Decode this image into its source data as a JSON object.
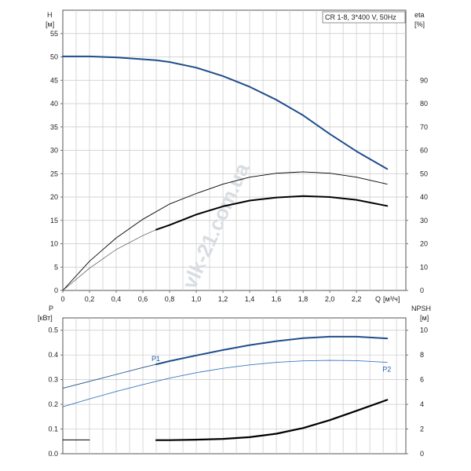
{
  "chart_data": [
    {
      "type": "line",
      "model_label": "CR 1-8, 3*400 V, 50Hz",
      "watermark": "vlk-21.com.ua",
      "xlim": [
        0,
        2.57
      ],
      "ylim": [
        0,
        60
      ],
      "y2lim": [
        0,
        120
      ],
      "left_axis": {
        "label": "H",
        "unit": "[м]",
        "ticks": [
          0,
          5,
          10,
          15,
          20,
          25,
          30,
          35,
          40,
          45,
          50,
          55
        ]
      },
      "right_axis": {
        "label": "eta",
        "unit": "[%]",
        "ticks": [
          0,
          10,
          20,
          30,
          40,
          50,
          60,
          70,
          80,
          90
        ]
      },
      "x_axis": {
        "label": "Q",
        "unit": "[м³/ч]",
        "ticks": [
          0,
          0.2,
          0.4,
          0.6,
          0.8,
          1.0,
          1.2,
          1.4,
          1.6,
          1.8,
          2.0,
          2.2
        ],
        "tick_labels": [
          "0",
          "0,2",
          "0,4",
          "0,6",
          "0,8",
          "1,0",
          "1,2",
          "1,4",
          "1,6",
          "1,8",
          "2,0",
          "2,2"
        ]
      },
      "series": [
        {
          "axis": "left",
          "color": "#1f4e8c",
          "width": 2.0,
          "x": [
            0,
            0.2,
            0.4,
            0.6,
            0.7,
            0.8,
            1.0,
            1.2,
            1.4,
            1.6,
            1.8,
            2.0,
            2.2,
            2.43
          ],
          "y": [
            50.1,
            50.1,
            49.9,
            49.5,
            49.3,
            48.9,
            47.7,
            45.9,
            43.6,
            40.8,
            37.5,
            33.5,
            29.8,
            26.0
          ]
        },
        {
          "axis": "right",
          "color": "#000000",
          "width": 0.9,
          "x": [
            0,
            0.2,
            0.4,
            0.6,
            0.8,
            1.0,
            1.2,
            1.4,
            1.6,
            1.8,
            2.0,
            2.2,
            2.43
          ],
          "y": [
            0,
            12.5,
            22.5,
            30.5,
            37.0,
            41.5,
            45.5,
            48.5,
            50.2,
            50.8,
            50.2,
            48.5,
            45.5
          ]
        },
        {
          "axis": "right",
          "color": "#555555",
          "width": 0.7,
          "x": [
            0,
            0.2,
            0.4,
            0.6,
            0.7
          ],
          "y": [
            0,
            9.5,
            17.5,
            23.5,
            26.0
          ]
        },
        {
          "axis": "right",
          "color": "#000000",
          "width": 2.0,
          "x": [
            0.7,
            0.8,
            1.0,
            1.2,
            1.4,
            1.6,
            1.8,
            2.0,
            2.2,
            2.43
          ],
          "y": [
            26.0,
            28.0,
            32.5,
            36.0,
            38.5,
            39.8,
            40.4,
            40.0,
            38.8,
            36.2
          ]
        }
      ]
    },
    {
      "type": "line",
      "xlim": [
        0,
        2.57
      ],
      "ylim": [
        0,
        0.55
      ],
      "y2lim": [
        0,
        11
      ],
      "left_axis": {
        "label": "P",
        "unit": "[кВт]",
        "ticks": [
          0,
          0.1,
          0.2,
          0.3,
          0.4,
          0.5
        ],
        "tick_labels": [
          "0.0",
          "0.1",
          "0.2",
          "0.3",
          "0.4",
          "0.5"
        ]
      },
      "right_axis": {
        "label": "NPSH",
        "unit": "[м]",
        "ticks": [
          0,
          2,
          4,
          6,
          8,
          10
        ]
      },
      "series": [
        {
          "name": "P1",
          "axis": "left",
          "color": "#1f4e8c",
          "width": 0.9,
          "label_color": "#1f5fa8",
          "x": [
            0,
            0.2,
            0.4,
            0.6,
            0.7
          ],
          "y": [
            0.265,
            0.293,
            0.321,
            0.349,
            0.362
          ]
        },
        {
          "axis": "left",
          "color": "#1f4e8c",
          "width": 2.0,
          "x": [
            0.7,
            0.8,
            1.0,
            1.2,
            1.4,
            1.6,
            1.8,
            2.0,
            2.2,
            2.43
          ],
          "y": [
            0.362,
            0.375,
            0.398,
            0.42,
            0.44,
            0.456,
            0.468,
            0.474,
            0.474,
            0.467
          ]
        },
        {
          "name": "P2",
          "axis": "left",
          "color": "#3a78c0",
          "width": 0.9,
          "label_color": "#1f5fa8",
          "x": [
            0,
            0.2,
            0.4,
            0.6,
            0.8,
            1.0,
            1.2,
            1.4,
            1.6,
            1.8,
            2.0,
            2.2,
            2.43
          ],
          "y": [
            0.19,
            0.222,
            0.252,
            0.28,
            0.306,
            0.328,
            0.346,
            0.36,
            0.37,
            0.376,
            0.378,
            0.377,
            0.37
          ]
        },
        {
          "axis": "right",
          "color": "#000000",
          "width": 1.0,
          "x": [
            0,
            0.2
          ],
          "y": [
            1.12,
            1.12
          ]
        },
        {
          "axis": "right",
          "color": "#000000",
          "width": 2.2,
          "x": [
            0.7,
            0.8,
            1.0,
            1.2,
            1.4,
            1.6,
            1.8,
            2.0,
            2.2,
            2.43
          ],
          "y": [
            1.1,
            1.1,
            1.14,
            1.2,
            1.34,
            1.62,
            2.08,
            2.72,
            3.48,
            4.36
          ]
        }
      ]
    }
  ]
}
